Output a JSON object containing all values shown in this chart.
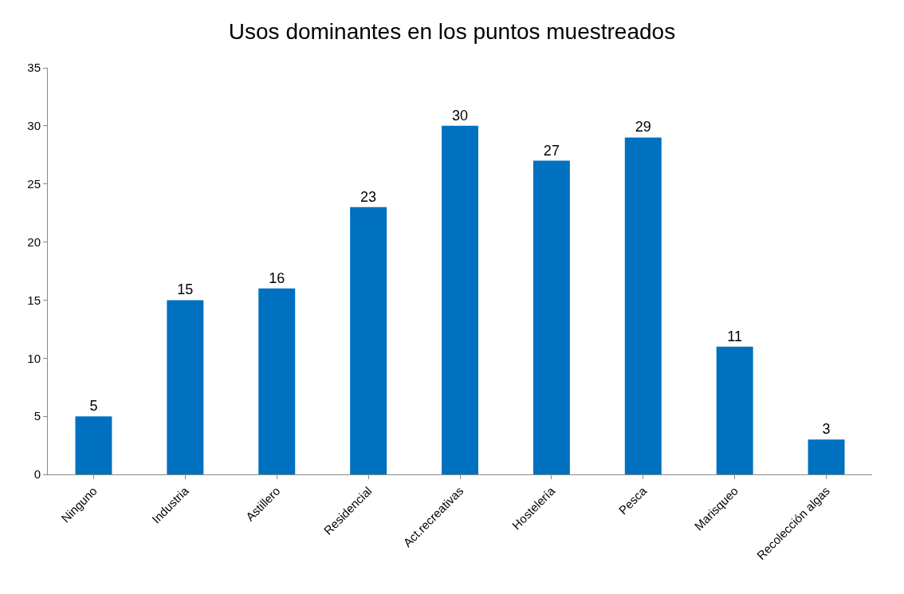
{
  "chart_data": {
    "type": "bar",
    "title": "Usos dominantes en los puntos muestreados",
    "categories": [
      "Ninguno",
      "Industria",
      "Astillero",
      "Residencial",
      "Act.recreativas",
      "Hostelería",
      "Pesca",
      "Marisqueo",
      "Recolección algas"
    ],
    "values": [
      5,
      15,
      16,
      23,
      30,
      27,
      29,
      11,
      3
    ],
    "color": "#0070c0",
    "ylim": [
      0,
      35
    ],
    "yticks": [
      0,
      5,
      10,
      15,
      20,
      25,
      30,
      35
    ],
    "data_labels": true
  }
}
